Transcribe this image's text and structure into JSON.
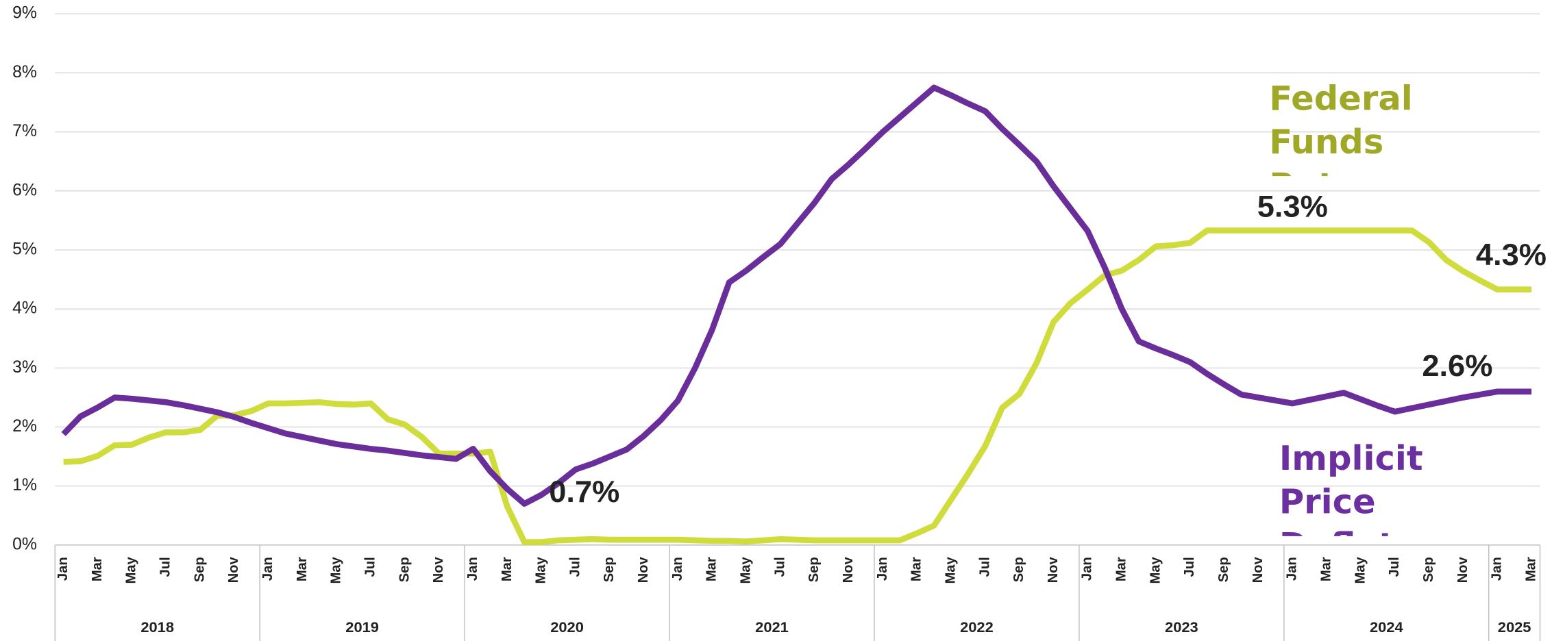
{
  "chart_data": {
    "type": "line",
    "categories": [
      "Jan",
      null,
      "Mar",
      null,
      "May",
      null,
      "Jul",
      null,
      "Sep",
      null,
      "Nov",
      null,
      "Jan",
      null,
      "Mar",
      null,
      "May",
      null,
      "Jul",
      null,
      "Sep",
      null,
      "Nov",
      null,
      "Jan",
      null,
      "Mar",
      null,
      "May",
      null,
      "Jul",
      null,
      "Sep",
      null,
      "Nov",
      null,
      "Jan",
      null,
      "Mar",
      null,
      "May",
      null,
      "Jul",
      null,
      "Sep",
      null,
      "Nov",
      null,
      "Jan",
      null,
      "Mar",
      null,
      "May",
      null,
      "Jul",
      null,
      "Sep",
      null,
      "Nov",
      null,
      "Jan",
      null,
      "Mar",
      null,
      "May",
      null,
      "Jul",
      null,
      "Sep",
      null,
      "Nov",
      null,
      "Jan",
      null,
      "Mar",
      null,
      "May",
      null,
      "Jul",
      null,
      "Sep",
      null,
      "Nov",
      null,
      "Jan",
      null,
      "Mar"
    ],
    "year_labels": [
      "2018",
      "2019",
      "2020",
      "2021",
      "2022",
      "2023",
      "2024",
      "2025"
    ],
    "ylim": [
      0,
      9
    ],
    "yticks": [
      {
        "value": 0,
        "label": "0%"
      },
      {
        "value": 1,
        "label": "1%"
      },
      {
        "value": 2,
        "label": "2%"
      },
      {
        "value": 3,
        "label": "3%"
      },
      {
        "value": 4,
        "label": "4%"
      },
      {
        "value": 5,
        "label": "5%"
      },
      {
        "value": 6,
        "label": "6%"
      },
      {
        "value": 7,
        "label": "7%"
      },
      {
        "value": 8,
        "label": "8%"
      },
      {
        "value": 9,
        "label": "9%"
      }
    ],
    "grid": true,
    "series": [
      {
        "name": "Federal Funds Rate",
        "color": "#cfdc3c",
        "label_color": "#a0a828",
        "values": [
          1.41,
          1.42,
          1.51,
          1.69,
          1.7,
          1.82,
          1.91,
          1.91,
          1.95,
          2.19,
          2.2,
          2.27,
          2.4,
          2.4,
          2.41,
          2.42,
          2.39,
          2.38,
          2.4,
          2.13,
          2.04,
          1.83,
          1.55,
          1.55,
          1.55,
          1.58,
          0.65,
          0.05,
          0.05,
          0.08,
          0.09,
          0.1,
          0.09,
          0.09,
          0.09,
          0.09,
          0.09,
          0.08,
          0.07,
          0.07,
          0.06,
          0.08,
          0.1,
          0.09,
          0.08,
          0.08,
          0.08,
          0.08,
          0.08,
          0.08,
          0.2,
          0.33,
          0.77,
          1.21,
          1.68,
          2.33,
          2.56,
          3.08,
          3.78,
          4.1,
          4.33,
          4.57,
          4.65,
          4.83,
          5.06,
          5.08,
          5.12,
          5.33,
          5.33,
          5.33,
          5.33,
          5.33,
          5.33,
          5.33,
          5.33,
          5.33,
          5.33,
          5.33,
          5.33,
          5.33,
          5.13,
          4.83,
          4.64,
          4.48,
          4.33,
          4.33,
          4.33
        ],
        "value_labels": [
          null,
          null,
          null,
          null,
          null,
          null,
          null,
          null,
          null,
          null,
          null,
          null,
          null,
          null,
          null,
          null,
          null,
          null,
          null,
          null,
          null,
          null,
          null,
          null,
          null,
          null,
          null,
          null,
          null,
          null,
          null,
          null,
          null,
          null,
          null,
          null,
          null,
          null,
          null,
          null,
          null,
          null,
          null,
          null,
          null,
          null,
          null,
          null,
          null,
          null,
          null,
          null,
          null,
          null,
          null,
          null,
          null,
          null,
          null,
          null,
          null,
          null,
          null,
          null,
          null,
          null,
          null,
          null,
          null,
          null,
          null,
          null,
          "5.3%",
          null,
          null,
          null,
          null,
          null,
          null,
          null,
          null,
          null,
          null,
          null,
          null,
          null,
          "4.3%"
        ]
      },
      {
        "name": "Implicit Price Deflator",
        "color": "#6a2e9b",
        "label_color": "#6b2fa0",
        "values": [
          1.88,
          2.18,
          2.33,
          2.5,
          2.48,
          2.45,
          2.42,
          2.37,
          2.31,
          2.25,
          2.17,
          2.07,
          1.98,
          1.89,
          1.83,
          1.77,
          1.71,
          1.67,
          1.63,
          1.6,
          1.56,
          1.52,
          1.49,
          1.46,
          1.63,
          1.25,
          0.95,
          0.7,
          0.85,
          1.05,
          1.28,
          1.38,
          1.5,
          1.62,
          1.85,
          2.12,
          2.45,
          3.0,
          3.65,
          4.45,
          4.65,
          4.88,
          5.1,
          5.45,
          5.8,
          6.2,
          6.45,
          6.72,
          7.0,
          7.25,
          7.5,
          7.75,
          7.62,
          7.48,
          7.35,
          7.05,
          6.78,
          6.5,
          6.08,
          5.7,
          5.32,
          4.7,
          4.0,
          3.45,
          3.33,
          3.22,
          3.1,
          2.9,
          2.72,
          2.55,
          2.5,
          2.45,
          2.4,
          2.46,
          2.52,
          2.58,
          2.47,
          2.36,
          2.26,
          2.32,
          2.38,
          2.44,
          2.5,
          2.55,
          2.6,
          2.6,
          2.6
        ],
        "value_labels": [
          null,
          null,
          null,
          null,
          null,
          null,
          null,
          null,
          null,
          null,
          null,
          null,
          null,
          null,
          null,
          null,
          null,
          null,
          null,
          null,
          null,
          null,
          null,
          null,
          null,
          null,
          null,
          "0.7%",
          null,
          null,
          null,
          null,
          null,
          null,
          null,
          null,
          null,
          null,
          null,
          null,
          null,
          null,
          null,
          null,
          null,
          null,
          null,
          null,
          null,
          null,
          null,
          null,
          null,
          null,
          null,
          null,
          null,
          null,
          null,
          null,
          null,
          null,
          null,
          null,
          null,
          null,
          null,
          null,
          null,
          null,
          null,
          null,
          null,
          null,
          null,
          null,
          null,
          null,
          null,
          null,
          null,
          null,
          null,
          null,
          "2.6%",
          null,
          null
        ]
      }
    ]
  }
}
